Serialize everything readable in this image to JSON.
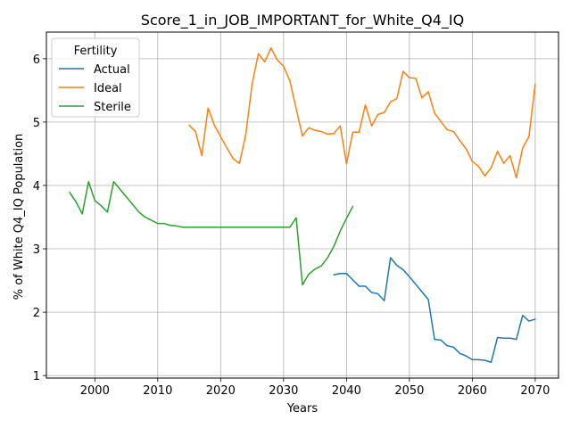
{
  "chart_data": {
    "type": "line",
    "title": "Score_1_in_JOB_IMPORTANT_for_White_Q4_IQ",
    "xlabel": "Years",
    "ylabel": "% of White Q4_IQ Population",
    "xlim": [
      1992.3,
      2073.7
    ],
    "ylim": [
      0.96,
      6.42
    ],
    "xticks": [
      2000,
      2010,
      2020,
      2030,
      2040,
      2050,
      2060,
      2070
    ],
    "yticks": [
      1,
      2,
      3,
      4,
      5,
      6
    ],
    "grid": true,
    "legend": {
      "title": "Fertility",
      "position": "top-left"
    },
    "series": [
      {
        "name": "Actual",
        "color": "#1f77b4",
        "x": [
          2038,
          2039,
          2040,
          2041,
          2042,
          2043,
          2044,
          2045,
          2046,
          2047,
          2048,
          2049,
          2050,
          2051,
          2052,
          2053,
          2054,
          2055,
          2056,
          2057,
          2058,
          2059,
          2060,
          2061,
          2062,
          2063,
          2064,
          2065,
          2066,
          2067,
          2068,
          2069,
          2070
        ],
        "y": [
          2.59,
          2.61,
          2.61,
          2.51,
          2.41,
          2.41,
          2.31,
          2.29,
          2.18,
          2.86,
          2.74,
          2.67,
          2.56,
          2.44,
          2.32,
          2.2,
          1.57,
          1.56,
          1.47,
          1.45,
          1.35,
          1.31,
          1.25,
          1.25,
          1.24,
          1.21,
          1.6,
          1.59,
          1.59,
          1.57,
          1.95,
          1.86,
          1.89
        ]
      },
      {
        "name": "Ideal",
        "color": "#ff7f0e",
        "x": [
          2015,
          2016,
          2017,
          2018,
          2019,
          2020,
          2021,
          2022,
          2023,
          2024,
          2025,
          2026,
          2027,
          2028,
          2029,
          2030,
          2031,
          2032,
          2033,
          2034,
          2035,
          2036,
          2037,
          2038,
          2039,
          2040,
          2041,
          2042,
          2043,
          2044,
          2045,
          2046,
          2047,
          2048,
          2049,
          2050,
          2051,
          2052,
          2053,
          2054,
          2055,
          2056,
          2057,
          2058,
          2059,
          2060,
          2061,
          2062,
          2063,
          2064,
          2065,
          2066,
          2067,
          2068,
          2069,
          2070
        ],
        "y": [
          4.95,
          4.85,
          4.47,
          5.22,
          4.95,
          4.77,
          4.59,
          4.42,
          4.35,
          4.81,
          5.6,
          6.08,
          5.95,
          6.17,
          5.98,
          5.88,
          5.65,
          5.21,
          4.78,
          4.91,
          4.87,
          4.85,
          4.81,
          4.82,
          4.94,
          4.34,
          4.84,
          4.84,
          5.27,
          4.94,
          5.12,
          5.15,
          5.32,
          5.37,
          5.8,
          5.7,
          5.69,
          5.38,
          5.48,
          5.14,
          5.01,
          4.88,
          4.85,
          4.71,
          4.58,
          4.38,
          4.3,
          4.15,
          4.28,
          4.54,
          4.35,
          4.47,
          4.12,
          4.59,
          4.77,
          5.6
        ]
      },
      {
        "name": "Sterile",
        "color": "#2ca02c",
        "x": [
          1996,
          1997,
          1998,
          1999,
          2000,
          2001,
          2002,
          2003,
          2004,
          2005,
          2006,
          2007,
          2008,
          2009,
          2010,
          2011,
          2012,
          2013,
          2014,
          2015,
          2016,
          2017,
          2018,
          2019,
          2020,
          2021,
          2022,
          2023,
          2024,
          2025,
          2026,
          2027,
          2028,
          2029,
          2030,
          2031,
          2032,
          2033,
          2034,
          2035,
          2036,
          2037,
          2038,
          2039,
          2040,
          2041
        ],
        "y": [
          3.89,
          3.74,
          3.55,
          4.06,
          3.76,
          3.68,
          3.58,
          4.06,
          3.94,
          3.82,
          3.7,
          3.58,
          3.5,
          3.45,
          3.4,
          3.4,
          3.37,
          3.36,
          3.34,
          3.34,
          3.34,
          3.34,
          3.34,
          3.34,
          3.34,
          3.34,
          3.34,
          3.34,
          3.34,
          3.34,
          3.34,
          3.34,
          3.34,
          3.34,
          3.34,
          3.34,
          3.49,
          2.43,
          2.6,
          2.68,
          2.73,
          2.86,
          3.04,
          3.28,
          3.48,
          3.67
        ]
      }
    ]
  }
}
